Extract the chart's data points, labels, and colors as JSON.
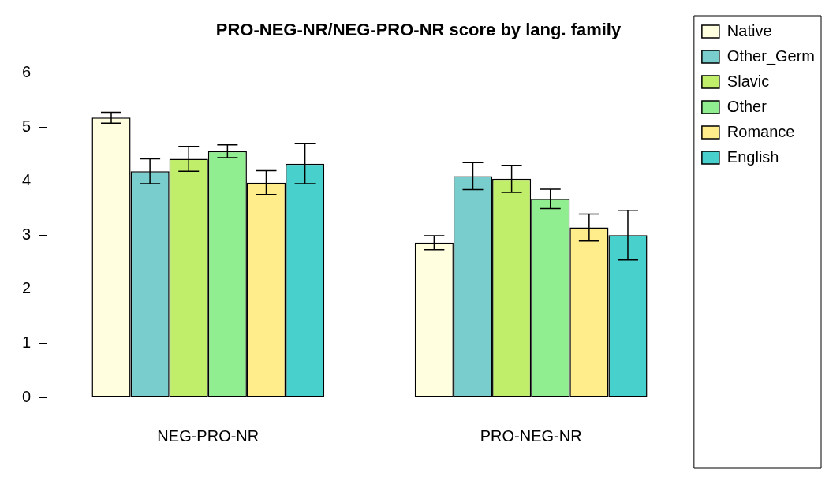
{
  "chart_data": {
    "type": "bar",
    "title": "PRO-NEG-NR/NEG-PRO-NR score by lang. family",
    "categories": [
      "NEG-PRO-NR",
      "PRO-NEG-NR"
    ],
    "series": [
      {
        "name": "Native",
        "color": "#ffffe0",
        "values": [
          5.17,
          2.86
        ],
        "errors": [
          0.1,
          0.13
        ]
      },
      {
        "name": "Other_Germ",
        "color": "#79cdcd",
        "values": [
          4.18,
          4.09
        ],
        "errors": [
          0.23,
          0.25
        ]
      },
      {
        "name": "Slavic",
        "color": "#c0ed6a",
        "values": [
          4.41,
          4.04
        ],
        "errors": [
          0.23,
          0.25
        ]
      },
      {
        "name": "Other",
        "color": "#90ee90",
        "values": [
          4.55,
          3.67
        ],
        "errors": [
          0.12,
          0.18
        ]
      },
      {
        "name": "Romance",
        "color": "#ffec8b",
        "values": [
          3.97,
          3.14
        ],
        "errors": [
          0.22,
          0.25
        ]
      },
      {
        "name": "English",
        "color": "#48d1cc",
        "values": [
          4.32,
          3.0
        ],
        "errors": [
          0.37,
          0.46
        ]
      }
    ],
    "ylim": [
      0,
      6
    ],
    "yticks": [
      0,
      1,
      2,
      3,
      4,
      5,
      6
    ],
    "legend": "top right"
  }
}
